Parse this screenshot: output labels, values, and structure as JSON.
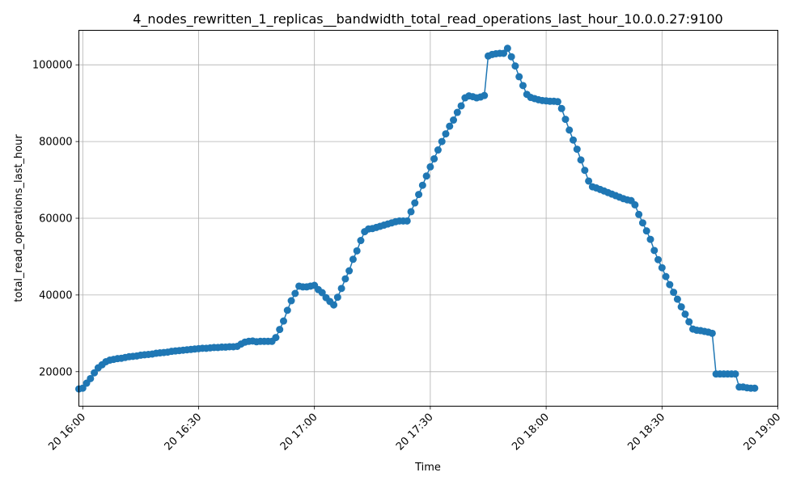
{
  "chart_data": {
    "type": "line",
    "title": "4_nodes_rewritten_1_replicas__bandwidth_total_read_operations_last_hour_10.0.0.27:9100",
    "xlabel": "Time",
    "ylabel": "total_read_operations_last_hour",
    "grid": true,
    "marker": "circle",
    "color": "#1f77b4",
    "xlim": [
      "15:59",
      "19:00"
    ],
    "ylim": [
      11000,
      109000
    ],
    "x_ticks": [
      {
        "time": "16:00",
        "label": "20 16:00"
      },
      {
        "time": "16:30",
        "label": "20 16:30"
      },
      {
        "time": "17:00",
        "label": "20 17:00"
      },
      {
        "time": "17:30",
        "label": "20 17:30"
      },
      {
        "time": "18:00",
        "label": "20 18:00"
      },
      {
        "time": "18:30",
        "label": "20 18:30"
      },
      {
        "time": "19:00",
        "label": "20 19:00"
      }
    ],
    "y_ticks": [
      20000,
      40000,
      60000,
      80000,
      100000
    ],
    "series": [
      {
        "points": [
          [
            "15:59",
            15500
          ],
          [
            "16:00",
            15700
          ],
          [
            "16:01",
            17000
          ],
          [
            "16:02",
            18200
          ],
          [
            "16:03",
            19700
          ],
          [
            "16:04",
            21000
          ],
          [
            "16:05",
            21800
          ],
          [
            "16:06",
            22600
          ],
          [
            "16:07",
            23000
          ],
          [
            "16:08",
            23200
          ],
          [
            "16:09",
            23400
          ],
          [
            "16:10",
            23500
          ],
          [
            "16:11",
            23700
          ],
          [
            "16:12",
            23900
          ],
          [
            "16:13",
            24000
          ],
          [
            "16:14",
            24100
          ],
          [
            "16:15",
            24300
          ],
          [
            "16:16",
            24400
          ],
          [
            "16:17",
            24500
          ],
          [
            "16:18",
            24600
          ],
          [
            "16:19",
            24800
          ],
          [
            "16:20",
            24900
          ],
          [
            "16:21",
            25000
          ],
          [
            "16:22",
            25100
          ],
          [
            "16:23",
            25300
          ],
          [
            "16:24",
            25400
          ],
          [
            "16:25",
            25500
          ],
          [
            "16:26",
            25600
          ],
          [
            "16:27",
            25700
          ],
          [
            "16:28",
            25800
          ],
          [
            "16:29",
            25900
          ],
          [
            "16:30",
            26000
          ],
          [
            "16:31",
            26100
          ],
          [
            "16:32",
            26100
          ],
          [
            "16:33",
            26200
          ],
          [
            "16:34",
            26300
          ],
          [
            "16:35",
            26300
          ],
          [
            "16:36",
            26400
          ],
          [
            "16:37",
            26400
          ],
          [
            "16:38",
            26500
          ],
          [
            "16:39",
            26500
          ],
          [
            "16:40",
            26600
          ],
          [
            "16:41",
            27200
          ],
          [
            "16:42",
            27700
          ],
          [
            "16:43",
            27900
          ],
          [
            "16:44",
            28000
          ],
          [
            "16:45",
            27800
          ],
          [
            "16:46",
            27900
          ],
          [
            "16:47",
            27900
          ],
          [
            "16:48",
            27900
          ],
          [
            "16:49",
            27900
          ],
          [
            "16:50",
            28900
          ],
          [
            "16:51",
            31000
          ],
          [
            "16:52",
            33200
          ],
          [
            "16:53",
            36000
          ],
          [
            "16:54",
            38500
          ],
          [
            "16:55",
            40400
          ],
          [
            "16:56",
            42300
          ],
          [
            "16:57",
            42100
          ],
          [
            "16:58",
            42100
          ],
          [
            "16:59",
            42300
          ],
          [
            "17:00",
            42500
          ],
          [
            "17:01",
            41400
          ],
          [
            "17:02",
            40600
          ],
          [
            "17:03",
            39300
          ],
          [
            "17:04",
            38300
          ],
          [
            "17:05",
            37400
          ],
          [
            "17:06",
            39400
          ],
          [
            "17:07",
            41700
          ],
          [
            "17:08",
            44200
          ],
          [
            "17:09",
            46300
          ],
          [
            "17:10",
            49300
          ],
          [
            "17:11",
            51500
          ],
          [
            "17:12",
            54200
          ],
          [
            "17:13",
            56500
          ],
          [
            "17:14",
            57200
          ],
          [
            "17:15",
            57300
          ],
          [
            "17:16",
            57600
          ],
          [
            "17:17",
            57900
          ],
          [
            "17:18",
            58200
          ],
          [
            "17:19",
            58500
          ],
          [
            "17:20",
            58800
          ],
          [
            "17:21",
            59100
          ],
          [
            "17:22",
            59300
          ],
          [
            "17:23",
            59300
          ],
          [
            "17:24",
            59300
          ],
          [
            "17:25",
            61700
          ],
          [
            "17:26",
            64000
          ],
          [
            "17:27",
            66200
          ],
          [
            "17:28",
            68600
          ],
          [
            "17:29",
            71000
          ],
          [
            "17:30",
            73400
          ],
          [
            "17:31",
            75500
          ],
          [
            "17:32",
            77800
          ],
          [
            "17:33",
            80000
          ],
          [
            "17:34",
            82000
          ],
          [
            "17:35",
            84000
          ],
          [
            "17:36",
            85600
          ],
          [
            "17:37",
            87600
          ],
          [
            "17:38",
            89300
          ],
          [
            "17:39",
            91400
          ],
          [
            "17:40",
            91900
          ],
          [
            "17:41",
            91700
          ],
          [
            "17:42",
            91400
          ],
          [
            "17:43",
            91600
          ],
          [
            "17:44",
            92000
          ],
          [
            "17:45",
            102300
          ],
          [
            "17:46",
            102700
          ],
          [
            "17:47",
            102900
          ],
          [
            "17:48",
            103000
          ],
          [
            "17:49",
            103000
          ],
          [
            "17:50",
            104300
          ],
          [
            "17:51",
            102100
          ],
          [
            "17:52",
            99700
          ],
          [
            "17:53",
            96900
          ],
          [
            "17:54",
            94600
          ],
          [
            "17:55",
            92300
          ],
          [
            "17:56",
            91500
          ],
          [
            "17:57",
            91200
          ],
          [
            "17:58",
            90900
          ],
          [
            "17:59",
            90700
          ],
          [
            "18:00",
            90600
          ],
          [
            "18:01",
            90500
          ],
          [
            "18:02",
            90500
          ],
          [
            "18:03",
            90400
          ],
          [
            "18:04",
            88600
          ],
          [
            "18:05",
            85800
          ],
          [
            "18:06",
            83000
          ],
          [
            "18:07",
            80400
          ],
          [
            "18:08",
            78000
          ],
          [
            "18:09",
            75200
          ],
          [
            "18:10",
            72500
          ],
          [
            "18:11",
            69700
          ],
          [
            "18:12",
            68200
          ],
          [
            "18:13",
            67900
          ],
          [
            "18:14",
            67500
          ],
          [
            "18:15",
            67100
          ],
          [
            "18:16",
            66700
          ],
          [
            "18:17",
            66300
          ],
          [
            "18:18",
            65900
          ],
          [
            "18:19",
            65500
          ],
          [
            "18:20",
            65100
          ],
          [
            "18:21",
            64800
          ],
          [
            "18:22",
            64600
          ],
          [
            "18:23",
            63500
          ],
          [
            "18:24",
            61000
          ],
          [
            "18:25",
            58800
          ],
          [
            "18:26",
            56700
          ],
          [
            "18:27",
            54500
          ],
          [
            "18:28",
            51600
          ],
          [
            "18:29",
            49200
          ],
          [
            "18:30",
            47100
          ],
          [
            "18:31",
            44800
          ],
          [
            "18:32",
            42700
          ],
          [
            "18:33",
            40700
          ],
          [
            "18:34",
            38900
          ],
          [
            "18:35",
            36900
          ],
          [
            "18:36",
            35000
          ],
          [
            "18:37",
            33000
          ],
          [
            "18:38",
            31100
          ],
          [
            "18:39",
            30800
          ],
          [
            "18:40",
            30700
          ],
          [
            "18:41",
            30500
          ],
          [
            "18:42",
            30300
          ],
          [
            "18:43",
            30000
          ],
          [
            "18:44",
            19400
          ],
          [
            "18:45",
            19400
          ],
          [
            "18:46",
            19400
          ],
          [
            "18:47",
            19400
          ],
          [
            "18:48",
            19400
          ],
          [
            "18:49",
            19400
          ],
          [
            "18:50",
            16000
          ],
          [
            "18:51",
            16000
          ],
          [
            "18:52",
            15800
          ],
          [
            "18:53",
            15700
          ],
          [
            "18:54",
            15700
          ]
        ]
      }
    ]
  }
}
